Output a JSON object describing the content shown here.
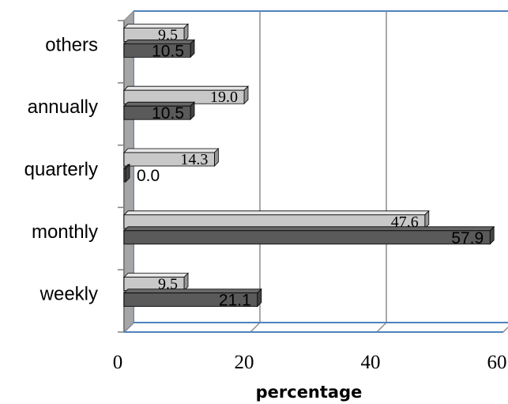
{
  "chart_data": {
    "type": "bar",
    "orientation": "horizontal",
    "categories": [
      "weekly",
      "monthly",
      "quarterly",
      "annually",
      "others"
    ],
    "series": [
      {
        "values": [
          9.5,
          47.6,
          14.3,
          19.0,
          9.5
        ],
        "color": "#c8c8c8"
      },
      {
        "values": [
          21.1,
          57.9,
          0.0,
          10.5,
          10.5
        ],
        "color": "#5a5a5a"
      }
    ],
    "xlabel": "percentage",
    "ylabel": "",
    "xlim": [
      0,
      60
    ],
    "xticks": [
      "0",
      "20",
      "40",
      "60"
    ],
    "grid": true,
    "style": "3d"
  }
}
